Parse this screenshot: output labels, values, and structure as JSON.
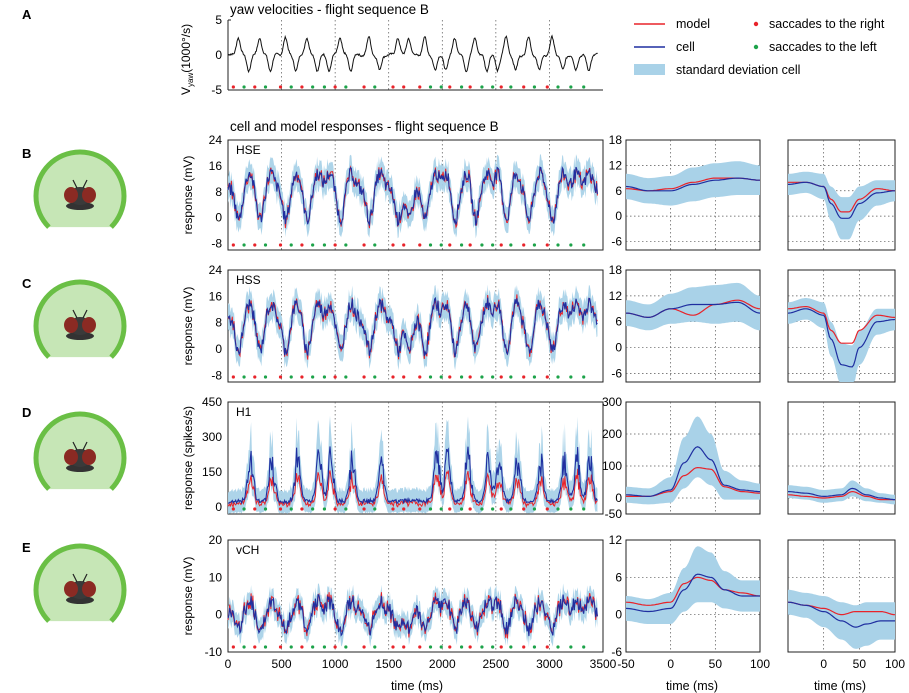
{
  "chart_data": {
    "type": "line",
    "figure": "yaw velocities and responses of fly tangential cells during flight sequence B",
    "colors": {
      "model": "#e8232a",
      "cell": "#1f2fa0",
      "std": "#a9d2e8",
      "right_saccade": "#e8232a",
      "left_saccade": "#1da34a",
      "yaw": "#111111",
      "fly_arc": "#6abf45",
      "fly_arc_inner": "#c6e6b6",
      "fly_body": "#8b2a23"
    },
    "legend": {
      "model": "model",
      "cell": "cell",
      "std": "standard deviation cell",
      "right": "saccades to the right",
      "left": "saccades to the left"
    },
    "panel_letters": [
      "A",
      "B",
      "C",
      "D",
      "E"
    ],
    "yaw": {
      "title": "yaw velocities - flight sequence B",
      "ylabel_main": "V",
      "ylabel_sub": "yaw",
      "ylabel_unit": "(1000°/s)",
      "yticks": [
        "5",
        "0",
        "-5"
      ],
      "ytick_values": [
        5,
        0,
        -5
      ],
      "ylim": [
        -5,
        5
      ]
    },
    "saccades": {
      "right_ms": [
        50,
        250,
        490,
        690,
        1000,
        1270,
        1540,
        1640,
        1790,
        2070,
        2260,
        2550,
        2760,
        2980
      ],
      "left_ms": [
        150,
        350,
        590,
        790,
        900,
        1100,
        1370,
        1890,
        1990,
        2180,
        2370,
        2470,
        2640,
        2860,
        3080,
        3200,
        3320
      ]
    },
    "sequence_title": "cell and model  responses - flight sequence B",
    "xlabel": "time (ms)",
    "xticks": [
      "0",
      "500",
      "1000",
      "1500",
      "2000",
      "2500",
      "3000",
      "3500"
    ],
    "xtick_values": [
      0,
      500,
      1000,
      1500,
      2000,
      2500,
      3000,
      3500
    ],
    "xlim": [
      0,
      3500
    ],
    "sta_xticks": [
      "-50",
      "0",
      "50",
      "100"
    ],
    "sta_xtick_values": [
      -50,
      0,
      50,
      100
    ],
    "sta_xlim": [
      -50,
      100
    ],
    "sta_xticks_right": [
      "0",
      "50",
      "100"
    ],
    "sta_xlabel": "time (ms)",
    "rows": [
      {
        "key": "B",
        "cell": "HSE",
        "ylabel": "response (mV)",
        "ylim": [
          -10,
          24
        ],
        "yticks": [
          "24",
          "16",
          "8",
          "0",
          "-8"
        ],
        "ytick_values": [
          24,
          16,
          8,
          0,
          -8
        ],
        "sta_yticks": [
          "18",
          "12",
          "6",
          "0",
          "-6"
        ],
        "sta_ytick_values": [
          18,
          12,
          6,
          0,
          -6
        ],
        "sta_ylim": [
          -8,
          18
        ],
        "sta_left": {
          "t": [
            -50,
            -25,
            0,
            25,
            50,
            75,
            100
          ],
          "model": [
            6.5,
            6,
            6.5,
            8,
            9,
            9,
            8.5
          ],
          "cell": [
            7,
            6,
            6,
            7.5,
            8.5,
            9,
            8.5
          ],
          "std": [
            3,
            3,
            3.5,
            4,
            4,
            4,
            3.5
          ]
        },
        "sta_right": {
          "t": [
            -50,
            -25,
            0,
            10,
            25,
            35,
            50,
            75,
            100
          ],
          "model": [
            8,
            8,
            7,
            4,
            1,
            1,
            4,
            6.5,
            6
          ],
          "cell": [
            7.5,
            8,
            7,
            3,
            -0.5,
            -0.5,
            3,
            5.5,
            6
          ],
          "std": [
            2.5,
            2.5,
            3,
            4,
            5,
            5,
            4,
            3,
            2.5
          ]
        }
      },
      {
        "key": "C",
        "cell": "HSS",
        "ylabel": "response (mV)",
        "ylim": [
          -10,
          24
        ],
        "yticks": [
          "24",
          "16",
          "8",
          "0",
          "-8"
        ],
        "ytick_values": [
          24,
          16,
          8,
          0,
          -8
        ],
        "sta_yticks": [
          "18",
          "12",
          "6",
          "0",
          "-6"
        ],
        "sta_ytick_values": [
          18,
          12,
          6,
          0,
          -6
        ],
        "sta_ylim": [
          -8,
          18
        ],
        "sta_left": {
          "t": [
            -50,
            -25,
            0,
            25,
            50,
            75,
            100
          ],
          "model": [
            8,
            7,
            9,
            7.5,
            10,
            11,
            9
          ],
          "cell": [
            8,
            7,
            9,
            10,
            10,
            10.5,
            8
          ],
          "std": [
            3,
            3,
            3.5,
            4,
            4.5,
            4.5,
            4
          ]
        },
        "sta_right": {
          "t": [
            -50,
            -25,
            0,
            10,
            25,
            40,
            50,
            75,
            100
          ],
          "model": [
            9,
            9.5,
            8,
            4,
            1,
            1,
            4,
            7.5,
            7
          ],
          "cell": [
            8,
            9,
            7.5,
            2,
            -4,
            -4.5,
            0,
            6,
            6.5
          ],
          "std": [
            2.5,
            2.5,
            3,
            4,
            5,
            5,
            4,
            3,
            2.5
          ]
        }
      },
      {
        "key": "D",
        "cell": "H1",
        "ylabel": "response (spikes/s)",
        "ylim": [
          -30,
          450
        ],
        "yticks": [
          "450",
          "300",
          "150",
          "0"
        ],
        "ytick_values": [
          450,
          300,
          150,
          0
        ],
        "sta_yticks": [
          "300",
          "200",
          "100",
          "0",
          "-50"
        ],
        "sta_ytick_values": [
          300,
          200,
          100,
          0,
          -50
        ],
        "sta_ylim": [
          -50,
          300
        ],
        "sta_left": {
          "t": [
            -50,
            -25,
            0,
            15,
            30,
            45,
            60,
            80,
            100
          ],
          "model": [
            5,
            5,
            20,
            70,
            95,
            90,
            35,
            20,
            15
          ],
          "cell": [
            10,
            5,
            25,
            110,
            160,
            120,
            40,
            25,
            20
          ],
          "std": [
            25,
            25,
            40,
            80,
            95,
            80,
            45,
            30,
            25
          ]
        },
        "sta_right": {
          "t": [
            -50,
            -25,
            0,
            25,
            40,
            60,
            80,
            100
          ],
          "model": [
            10,
            5,
            0,
            5,
            20,
            5,
            -5,
            -5
          ],
          "cell": [
            20,
            15,
            5,
            10,
            30,
            10,
            0,
            -5
          ],
          "std": [
            20,
            20,
            20,
            20,
            25,
            20,
            15,
            15
          ]
        }
      },
      {
        "key": "E",
        "cell": "vCH",
        "ylabel": "response (mV)",
        "ylim": [
          -10,
          20
        ],
        "yticks": [
          "20",
          "10",
          "0",
          "-10"
        ],
        "ytick_values": [
          20,
          10,
          0,
          -10
        ],
        "sta_yticks": [
          "12",
          "6",
          "0",
          "-6"
        ],
        "sta_ytick_values": [
          12,
          6,
          0,
          -6
        ],
        "sta_ylim": [
          -6,
          12
        ],
        "sta_left": {
          "t": [
            -50,
            -25,
            0,
            15,
            30,
            45,
            60,
            80,
            100
          ],
          "model": [
            2,
            1.5,
            2,
            5,
            6,
            5.5,
            4,
            3.5,
            3
          ],
          "cell": [
            1,
            0.5,
            1,
            4,
            6.5,
            6,
            4,
            3,
            3
          ],
          "std": [
            2,
            2,
            2.5,
            3.5,
            4.5,
            4,
            3,
            2.5,
            2.5
          ]
        },
        "sta_right": {
          "t": [
            -50,
            -25,
            0,
            25,
            45,
            60,
            80,
            100
          ],
          "model": [
            2,
            1.5,
            1,
            0,
            0.5,
            0.5,
            0.5,
            0
          ],
          "cell": [
            2,
            1.5,
            0.5,
            -1,
            -2,
            -1.5,
            -1,
            -1
          ],
          "std": [
            2,
            2,
            2.5,
            3,
            3.5,
            3.5,
            3,
            3
          ]
        }
      }
    ]
  }
}
